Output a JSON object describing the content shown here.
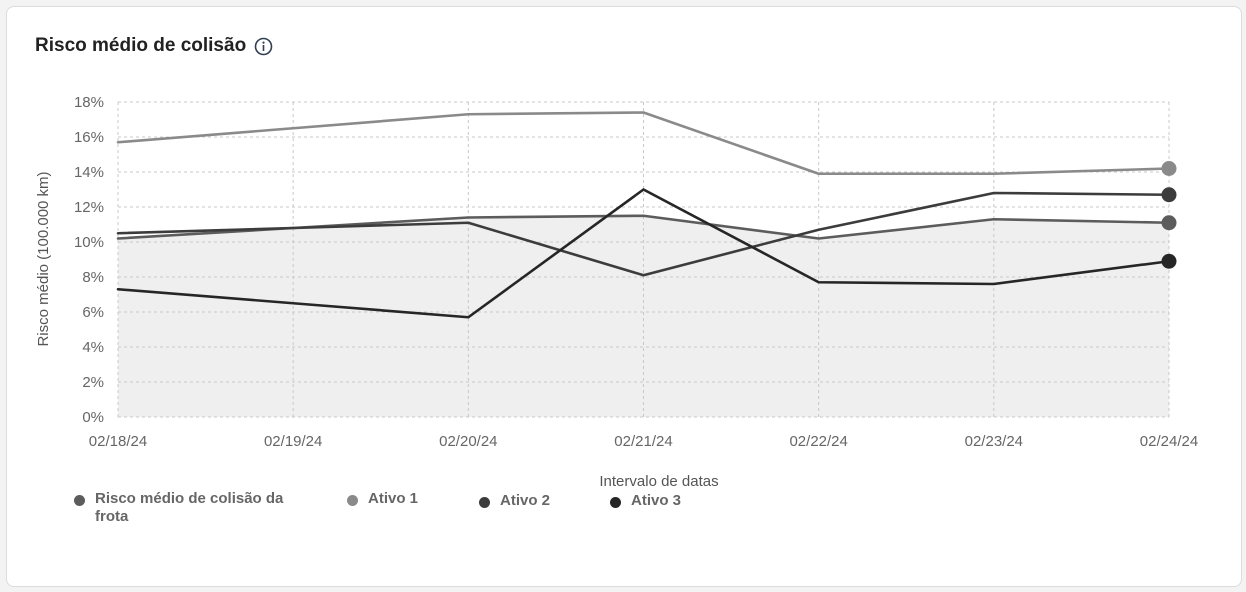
{
  "card": {
    "title": "Risco médio de colisão",
    "info_icon": "info-circle-icon"
  },
  "chart_data": {
    "type": "line",
    "title": "Risco médio de colisão",
    "xlabel": "Intervalo de datas",
    "ylabel": "Risco médio (100.000 km)",
    "categories": [
      "02/18/24",
      "02/19/24",
      "02/20/24",
      "02/21/24",
      "02/22/24",
      "02/23/24",
      "02/24/24"
    ],
    "ylim": [
      0,
      18
    ],
    "y_ticks": [
      "0%",
      "2%",
      "4%",
      "6%",
      "8%",
      "10%",
      "12%",
      "14%",
      "16%",
      "18%"
    ],
    "grid": true,
    "legend_position": "bottom-left",
    "series": [
      {
        "name": "Risco médio de colisão da frota",
        "color": "#5c5c5c",
        "area": true,
        "values": [
          10.2,
          10.8,
          11.4,
          11.5,
          10.2,
          11.3,
          11.1
        ]
      },
      {
        "name": "Ativo 1",
        "color": "#8a8a8a",
        "area": false,
        "values": [
          15.7,
          16.5,
          17.3,
          17.4,
          13.9,
          13.9,
          14.2
        ]
      },
      {
        "name": "Ativo 2",
        "color": "#3c3c3c",
        "area": false,
        "values": [
          10.5,
          10.8,
          11.1,
          8.1,
          10.7,
          12.8,
          12.7
        ]
      },
      {
        "name": "Ativo 3",
        "color": "#262626",
        "area": false,
        "values": [
          7.3,
          6.5,
          5.7,
          13.0,
          7.7,
          7.6,
          8.9
        ]
      }
    ]
  },
  "legend": {
    "items": [
      {
        "label": "Risco médio de colisão da frota",
        "color": "#5c5c5c"
      },
      {
        "label": "Ativo 1",
        "color": "#8a8a8a"
      },
      {
        "label": "Ativo 2",
        "color": "#3c3c3c"
      },
      {
        "label": "Ativo 3",
        "color": "#262626"
      }
    ]
  }
}
